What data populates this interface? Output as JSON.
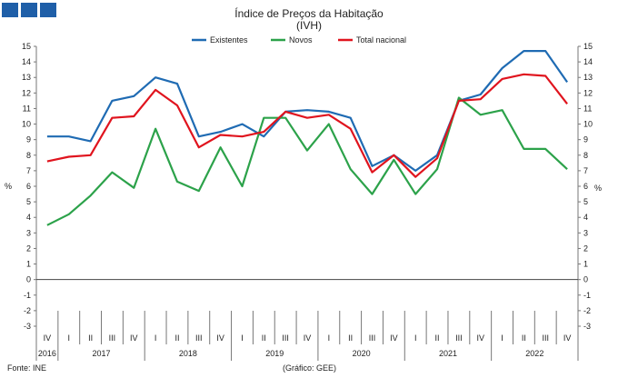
{
  "brand_squares": [
    "brand-square",
    "brand-square",
    "brand-square"
  ],
  "footer": {
    "source": "Fonte: INE",
    "credit": "(Gráfico: GEE)"
  },
  "chart_data": {
    "type": "line",
    "title": "Índice de Preços da Habitação",
    "subtitle": "(IVH)",
    "ylabel_left": "%",
    "ylabel_right": "%",
    "ylim": [
      -3,
      15
    ],
    "yticks": [
      15,
      14,
      13,
      12,
      11,
      10,
      9,
      8,
      7,
      6,
      5,
      4,
      3,
      2,
      1,
      0,
      -1,
      -2,
      -3
    ],
    "grid": false,
    "legend_position": "top",
    "quarters": [
      "IV",
      "I",
      "II",
      "III",
      "IV",
      "I",
      "II",
      "III",
      "IV",
      "I",
      "II",
      "III",
      "IV",
      "I",
      "II",
      "III",
      "IV",
      "I",
      "II",
      "III",
      "IV",
      "I",
      "II",
      "III",
      "IV"
    ],
    "years": [
      {
        "label": "2016",
        "quarters": 1
      },
      {
        "label": "2017",
        "quarters": 4
      },
      {
        "label": "2018",
        "quarters": 4
      },
      {
        "label": "2019",
        "quarters": 4
      },
      {
        "label": "2020",
        "quarters": 4
      },
      {
        "label": "2021",
        "quarters": 4
      },
      {
        "label": "2022",
        "quarters": 4
      }
    ],
    "series": [
      {
        "name": "Existentes",
        "color": "#1f6bb3",
        "values": [
          9.2,
          9.2,
          8.9,
          11.5,
          11.8,
          13.0,
          12.6,
          9.2,
          9.5,
          10.0,
          9.2,
          10.8,
          10.9,
          10.8,
          10.4,
          7.3,
          8.0,
          7.0,
          8.0,
          11.5,
          11.9,
          13.6,
          14.7,
          14.7,
          12.7
        ]
      },
      {
        "name": "Novos",
        "color": "#2ca24a",
        "values": [
          3.5,
          4.2,
          5.4,
          6.9,
          5.9,
          9.7,
          6.3,
          5.7,
          8.5,
          6.0,
          10.4,
          10.4,
          8.3,
          10.0,
          7.1,
          5.5,
          7.7,
          5.5,
          7.1,
          11.7,
          10.6,
          10.9,
          8.4,
          8.4,
          7.1
        ]
      },
      {
        "name": "Total nacional",
        "color": "#e0141e",
        "values": [
          7.6,
          7.9,
          8.0,
          10.4,
          10.5,
          12.2,
          11.2,
          8.5,
          9.3,
          9.2,
          9.5,
          10.8,
          10.4,
          10.6,
          9.7,
          6.9,
          8.0,
          6.6,
          7.8,
          11.5,
          11.6,
          12.9,
          13.2,
          13.1,
          11.3
        ]
      }
    ]
  }
}
